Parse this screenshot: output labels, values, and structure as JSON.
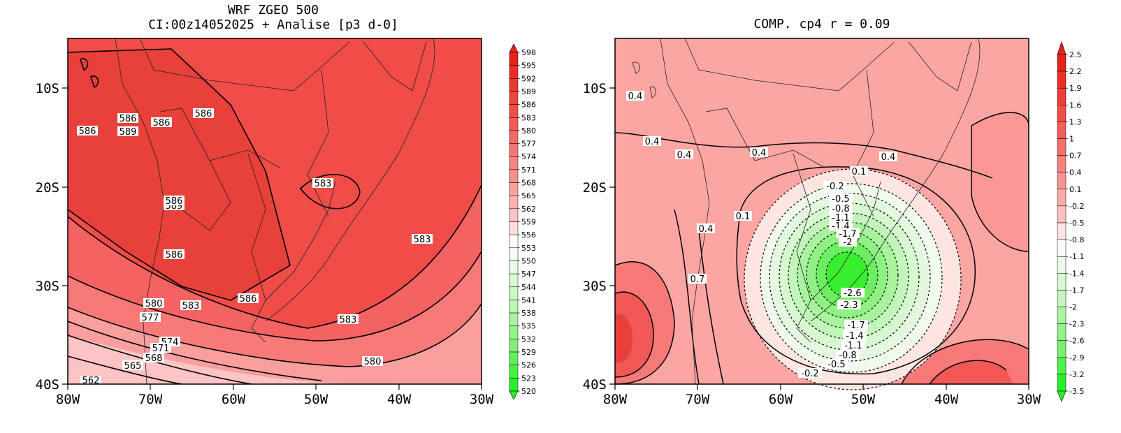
{
  "panels": [
    {
      "title_line1": "WRF ZGEO 500",
      "title_line2": "CI:00z14052025 + Analise  [p3 d-0]",
      "x_ticks": [
        "80W",
        "70W",
        "60W",
        "50W",
        "40W",
        "30W"
      ],
      "y_ticks": [
        "10S",
        "20S",
        "30S",
        "40S"
      ],
      "colorbar": [
        "598",
        "595",
        "592",
        "589",
        "586",
        "583",
        "580",
        "577",
        "574",
        "571",
        "568",
        "565",
        "562",
        "559",
        "556",
        "553",
        "550",
        "547",
        "544",
        "541",
        "538",
        "535",
        "532",
        "529",
        "526",
        "523",
        "520"
      ],
      "contour_labels": [
        "586",
        "586",
        "586",
        "589",
        "586",
        "583",
        "589",
        "586",
        "586",
        "583",
        "580",
        "583",
        "586",
        "583",
        "577",
        "574",
        "571",
        "568",
        "565",
        "562",
        "580"
      ]
    },
    {
      "title": "COMP. cp4  r =  0.09",
      "x_ticks": [
        "80W",
        "70W",
        "60W",
        "50W",
        "40W",
        "30W"
      ],
      "y_ticks": [
        "10S",
        "20S",
        "30S",
        "40S"
      ],
      "colorbar": [
        "2.5",
        "2.2",
        "1.9",
        "1.6",
        "1.3",
        "1",
        "0.7",
        "0.4",
        "0.1",
        "-0.2",
        "-0.5",
        "-0.8",
        "-1.1",
        "-1.4",
        "-1.7",
        "-2",
        "-2.3",
        "-2.6",
        "-2.9",
        "-3.2",
        "-3.5"
      ],
      "contour_labels": [
        "0.4",
        "0.4",
        "0.4",
        "0.4",
        "0.4",
        "0.1",
        "-0.2",
        "-0.5",
        "-0.8",
        "-1.1",
        "-1.4",
        "-1.7",
        "-2",
        "0.1",
        "0.4",
        "0.7",
        "-2.6",
        "-2.3",
        "-1.7",
        "-1.4",
        "-1.1",
        "-0.8",
        "-0.5",
        "-0.2"
      ]
    }
  ],
  "colors": {
    "red_strong": "#e8403a",
    "red_mid": "#f46262",
    "red_light": "#fa9e9e",
    "pink": "#fcc4c4",
    "white_pink": "#fde6e2",
    "green_light": "#d6f7d0",
    "green_mid": "#9df08f",
    "green_strong": "#39ee2f"
  }
}
